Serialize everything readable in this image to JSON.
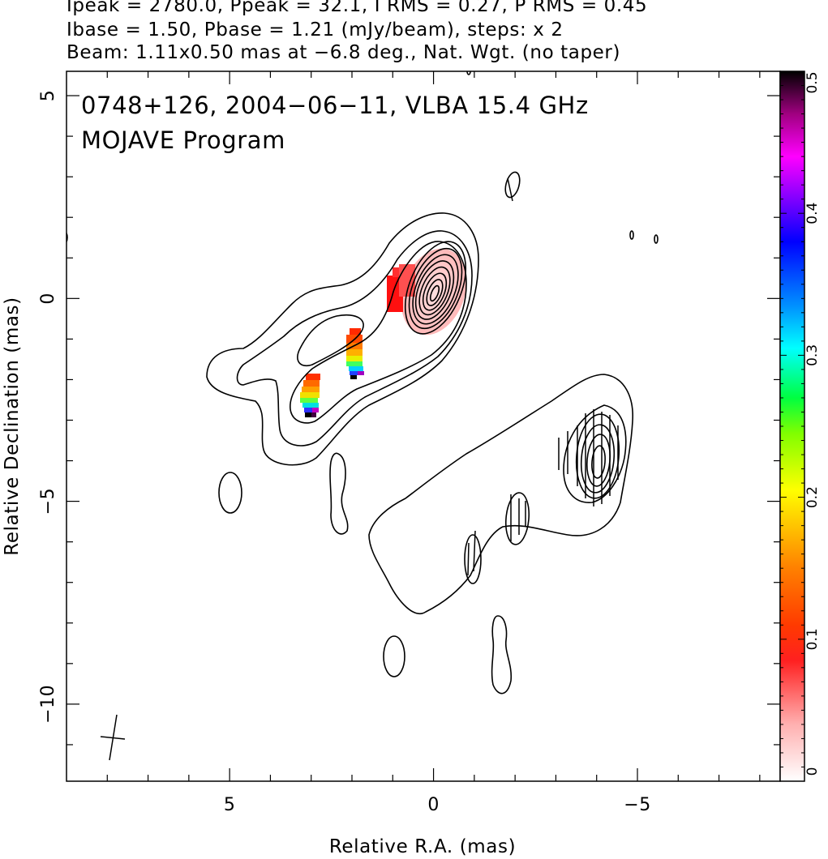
{
  "header": {
    "line1": "Ipeak = 2780.0, Ppeak = 32.1, I RMS = 0.27, P RMS = 0.45",
    "line2": "Ibase = 1.50, Pbase = 1.21 (mJy/beam), steps: x 2",
    "line3": "Beam: 1.11x0.50 mas at −6.8 deg., Nat. Wgt. (no taper)"
  },
  "plot": {
    "title_line1": "0748+126, 2004−06−11, VLBA 15.4 GHz",
    "title_line2": "MOJAVE Program"
  },
  "chart_data": {
    "type": "contour",
    "xlabel": "Relative R.A. (mas)",
    "ylabel": "Relative Declination (mas)",
    "xlim": [
      9,
      -8.5
    ],
    "ylim": [
      -11.9,
      5.6
    ],
    "x_axis_reversed": true,
    "x_tick_labels": [
      "5",
      "0",
      "−5"
    ],
    "x_ticks": [
      5,
      0,
      -5
    ],
    "y_tick_labels": [
      "5",
      "0",
      "−5",
      "−10"
    ],
    "y_ticks": [
      5,
      0,
      -5,
      -10
    ],
    "source": "0748+126",
    "epoch": "2004−06−11",
    "instrument": "VLBA 15.4 GHz",
    "program": "MOJAVE Program",
    "total_intensity": {
      "peak_mJy_per_beam": 2780.0,
      "rms": 0.27,
      "base_contour_mJy_per_beam": 1.5,
      "contour_step_factor": 2,
      "core_position_mas": [
        0,
        0
      ]
    },
    "polarization": {
      "peak_mJy_per_beam": 32.1,
      "rms": 0.45,
      "base_mJy_per_beam": 1.21
    },
    "beam": {
      "major_mas": 1.11,
      "minor_mas": 0.5,
      "pa_deg": -6.8,
      "weighting": "Nat. Wgt. (no taper)"
    },
    "fractional_polarization_regions": [
      {
        "ra": 0.85,
        "dec": 0.15,
        "range": [
          0.05,
          0.1
        ]
      },
      {
        "ra": 1.9,
        "dec": -1.4,
        "range": [
          0.05,
          0.45
        ]
      },
      {
        "ra": 2.95,
        "dec": -2.4,
        "range": [
          0.05,
          0.5
        ]
      }
    ],
    "colorbar": {
      "min": 0,
      "max": 0.5,
      "tick_labels": [
        "0",
        "0.1",
        "0.2",
        "0.3",
        "0.4",
        "0.5"
      ],
      "tick_values": [
        0,
        0.1,
        0.2,
        0.3,
        0.4,
        0.5
      ],
      "colors": [
        "#ffffff",
        "#ff8080",
        "#ff0000",
        "#ff8000",
        "#ffff00",
        "#00ff00",
        "#00ffff",
        "#0000ff",
        "#ff00ff",
        "#000000"
      ]
    }
  }
}
